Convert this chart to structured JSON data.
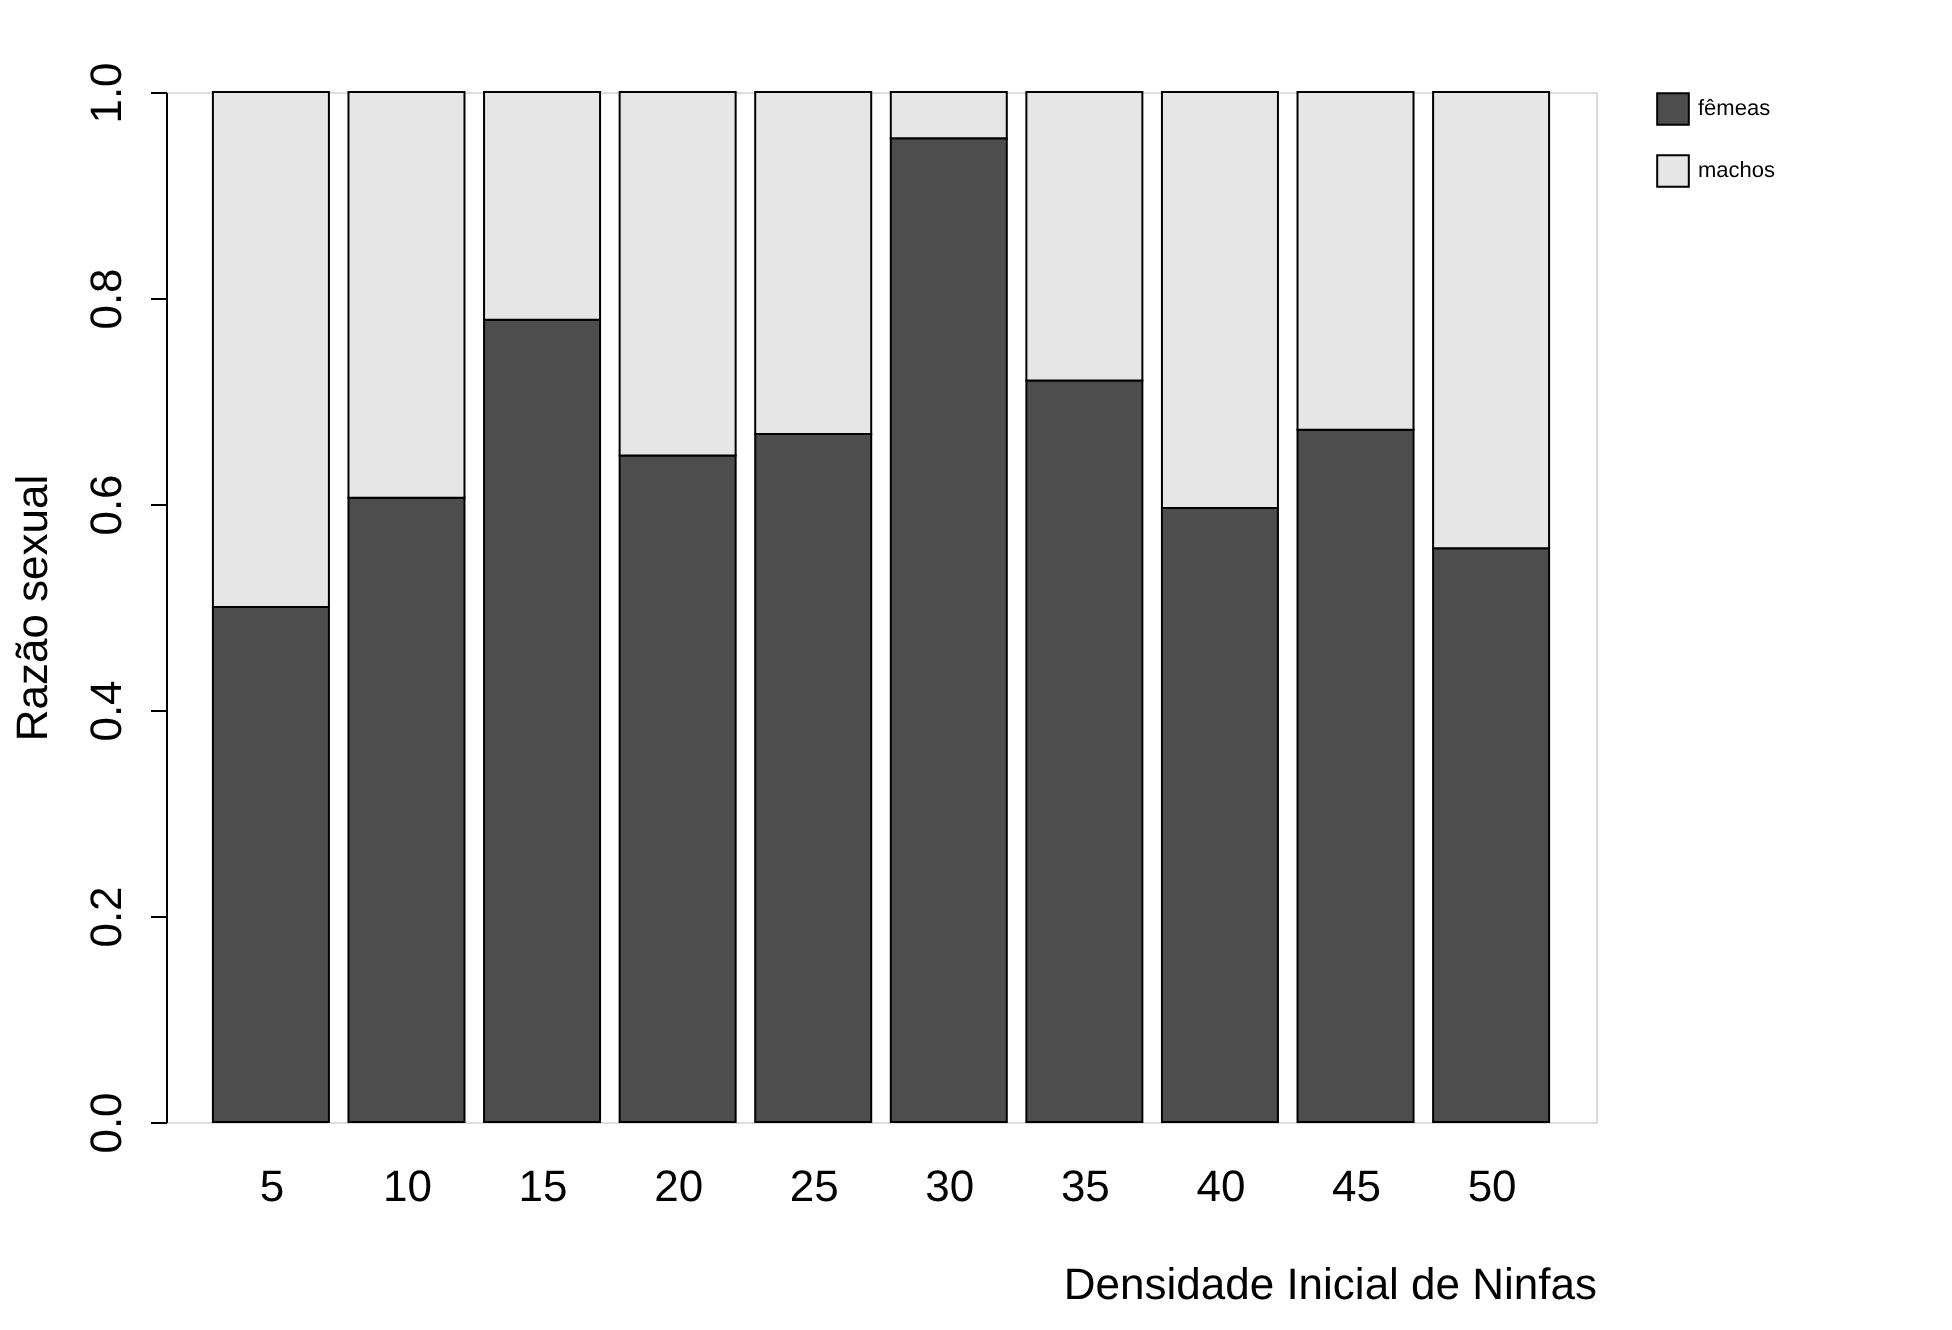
{
  "chart_data": {
    "type": "bar",
    "stacked": true,
    "xlabel": "Densidade Inicial de Ninfas",
    "ylabel": "Razão sexual",
    "categories": [
      "5",
      "10",
      "15",
      "20",
      "25",
      "30",
      "35",
      "40",
      "45",
      "50"
    ],
    "series": [
      {
        "name": "fêmeas",
        "color": "#4d4d4d",
        "values": [
          0.5,
          0.606,
          0.779,
          0.647,
          0.668,
          0.955,
          0.72,
          0.596,
          0.672,
          0.557
        ]
      },
      {
        "name": "machos",
        "color": "#e6e6e6",
        "values": [
          0.5,
          0.394,
          0.221,
          0.353,
          0.332,
          0.045,
          0.28,
          0.404,
          0.328,
          0.443
        ]
      }
    ],
    "ylim": [
      0,
      1
    ],
    "yticks": [
      {
        "value": 0,
        "label": "0.0"
      },
      {
        "value": 0.2,
        "label": "0.2"
      },
      {
        "value": 0.4,
        "label": "0.4"
      },
      {
        "value": 0.6,
        "label": "0.6"
      },
      {
        "value": 0.8,
        "label": "0.8"
      },
      {
        "value": 1,
        "label": "1.0"
      }
    ],
    "grid": false,
    "legend": "top right"
  }
}
